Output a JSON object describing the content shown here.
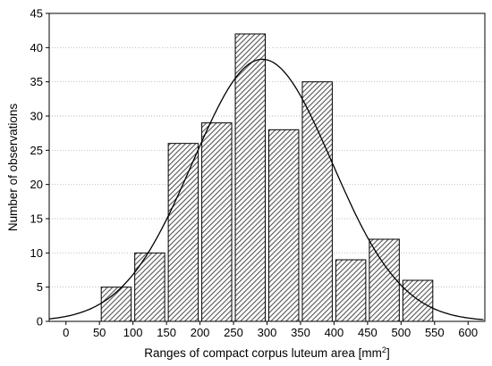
{
  "chart_data": {
    "type": "bar",
    "title": "",
    "xlabel": "Ranges of compact corpus luteum area [mm",
    "xlabel_sup": "2",
    "xlabel_end": "]",
    "ylabel": "Number of observations",
    "xlim": [
      -25,
      625
    ],
    "ylim": [
      0,
      45
    ],
    "x_ticks": [
      0,
      50,
      100,
      150,
      200,
      250,
      300,
      350,
      400,
      450,
      500,
      550,
      600
    ],
    "y_ticks": [
      0,
      5,
      10,
      15,
      20,
      25,
      30,
      35,
      40,
      45
    ],
    "grid": true,
    "bin_edges": [
      50,
      100,
      150,
      200,
      250,
      300,
      350,
      400,
      450,
      500,
      550
    ],
    "values": [
      5,
      10,
      26,
      29,
      42,
      28,
      35,
      9,
      12,
      6
    ],
    "fit_curve": {
      "type": "normal",
      "mean": 293,
      "sd": 104,
      "peak": 38.3
    },
    "colors": {
      "bar_fill": "#c8c8c8",
      "bar_stroke": "#000000",
      "grid": "#a0a0a0",
      "curve": "#000000"
    }
  }
}
